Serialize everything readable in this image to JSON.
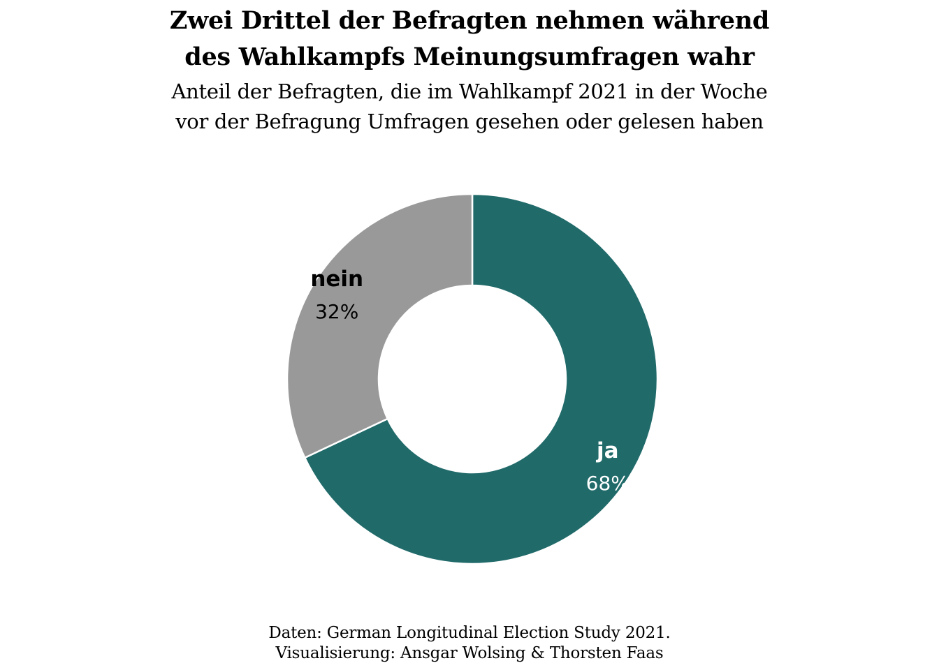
{
  "title_line1": "Zwei Drittel der Befragten nehmen während",
  "title_line2": "des Wahlkampfs Meinungsumfragen wahr",
  "subtitle": "Anteil der Befragten, die im Wahlkampf 2021 in der Woche vor der Befragung Umfragen gesehen oder gelesen haben",
  "caption_line1": "Daten: German Longitudinal Election Study 2021.",
  "caption_line2": "Visualisierung: Ansgar Wolsing & Thorsten Faas",
  "chart_data": {
    "type": "pie",
    "donut": true,
    "title": "Zwei Drittel der Befragten nehmen während des Wahlkampfs Meinungsumfragen wahr",
    "subtitle": "Anteil der Befragten, die im Wahlkampf 2021 in der Woche vor der Befragung Umfragen gesehen oder gelesen haben",
    "slices": [
      {
        "label": "ja",
        "value": 68,
        "value_label": "68%",
        "color": "#216a6a",
        "text_color": "#ffffff"
      },
      {
        "label": "nein",
        "value": 32,
        "value_label": "32%",
        "color": "#999999",
        "text_color": "#000000"
      }
    ],
    "start": "12 o'clock",
    "direction": "clockwise",
    "separator_color": "#ffffff"
  }
}
